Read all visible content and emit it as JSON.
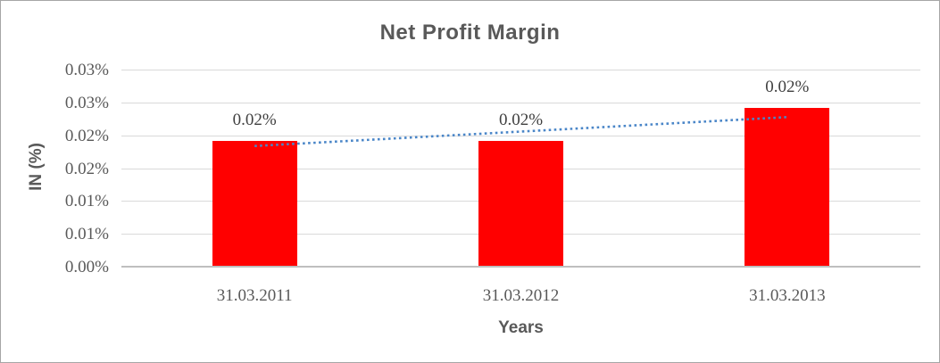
{
  "chart_data": {
    "type": "bar",
    "title": "Net Profit Margin",
    "xlabel": "Years",
    "ylabel": "IN (%)",
    "categories": [
      "31.03.2011",
      "31.03.2012",
      "31.03.2013"
    ],
    "values": [
      0.019,
      0.019,
      0.024
    ],
    "data_labels": [
      "0.02%",
      "0.02%",
      "0.02%"
    ],
    "ylim": [
      0,
      0.03
    ],
    "ytick_step": 0.005,
    "ytick_labels_bottom_to_top": [
      "0.00%",
      "0.01%",
      "0.01%",
      "0.02%",
      "0.02%",
      "0.03%",
      "0.03%"
    ],
    "grid": true,
    "legend": "none",
    "bar_color": "#ff0000",
    "trendline": {
      "type": "linear",
      "style": "dotted",
      "color": "#4a86c8",
      "start_value": 0.0185,
      "end_value": 0.0229
    }
  },
  "colors": {
    "axis_text": "#595959",
    "data_label_text": "#404040",
    "gridline": "#d9d9d9",
    "axis_line": "#bfbfbf",
    "title_text": "#595959",
    "canvas_border": "#a6a6a6"
  }
}
